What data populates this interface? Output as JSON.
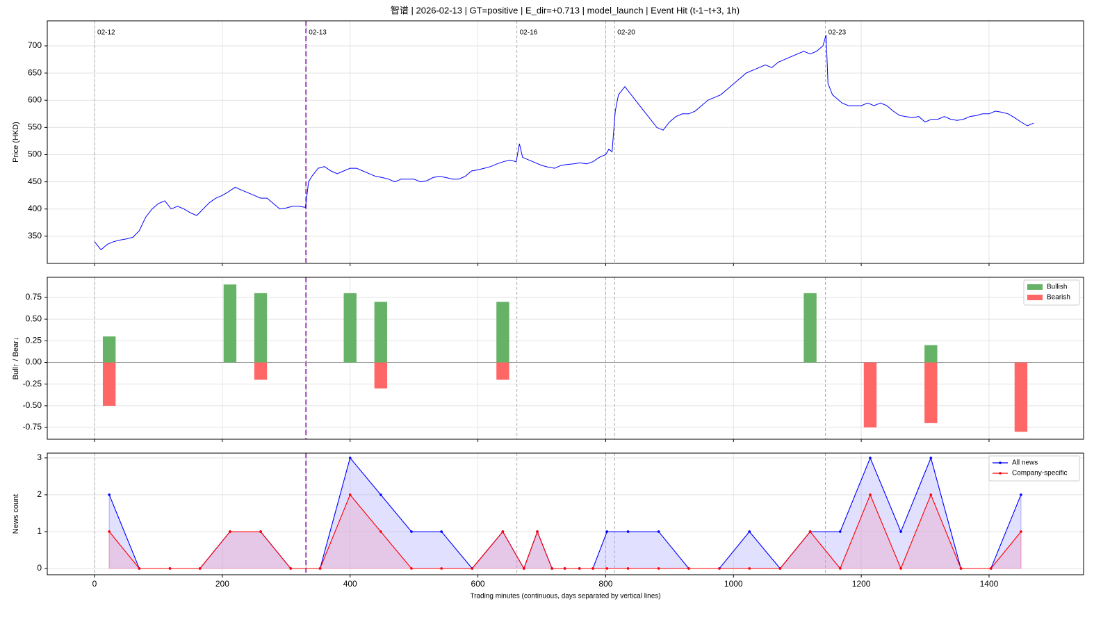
{
  "chart_data": [
    {
      "type": "line",
      "title": "智谱 | 2026-02-13 | GT=positive | E_dir=+0.713 | model_launch | Event Hit (t-1~t+3, 1h)",
      "y_label": "Price (HKD)",
      "color": "#0000ff",
      "grid": true,
      "xlim": [
        -74,
        1548
      ],
      "xticks": [
        0,
        200,
        400,
        600,
        800,
        1000,
        1200,
        1400
      ],
      "ylim": [
        300,
        746
      ],
      "yticks": [
        350,
        400,
        450,
        500,
        550,
        600,
        650,
        700
      ],
      "day_lines": {
        "x": [
          0,
          331,
          661,
          800,
          814,
          1144
        ],
        "labels": [
          "02-12",
          "02-13",
          "02-16",
          null,
          "02-20",
          "02-23"
        ],
        "color": "#aaaaaa"
      },
      "event_line": {
        "x": 331,
        "color": "#b565c8"
      },
      "x": [
        0,
        10,
        20,
        30,
        40,
        50,
        60,
        70,
        80,
        90,
        100,
        110,
        120,
        130,
        140,
        150,
        160,
        170,
        180,
        190,
        200,
        210,
        220,
        230,
        240,
        250,
        260,
        270,
        280,
        290,
        300,
        310,
        320,
        330,
        335,
        340,
        350,
        360,
        370,
        380,
        390,
        400,
        410,
        420,
        430,
        440,
        450,
        460,
        470,
        480,
        490,
        500,
        510,
        520,
        530,
        540,
        550,
        560,
        570,
        580,
        590,
        600,
        610,
        620,
        630,
        640,
        650,
        660,
        665,
        670,
        680,
        690,
        700,
        710,
        720,
        730,
        740,
        750,
        760,
        770,
        780,
        790,
        800,
        805,
        810,
        815,
        820,
        830,
        840,
        850,
        860,
        870,
        880,
        890,
        900,
        910,
        920,
        930,
        940,
        950,
        960,
        970,
        980,
        990,
        1000,
        1010,
        1020,
        1030,
        1040,
        1050,
        1060,
        1070,
        1080,
        1090,
        1100,
        1110,
        1120,
        1130,
        1140,
        1145,
        1148,
        1150,
        1155,
        1160,
        1170,
        1180,
        1190,
        1200,
        1210,
        1220,
        1230,
        1240,
        1250,
        1260,
        1270,
        1280,
        1290,
        1300,
        1310,
        1320,
        1330,
        1340,
        1350,
        1360,
        1370,
        1380,
        1390,
        1400,
        1410,
        1420,
        1430,
        1440,
        1450,
        1460,
        1470
      ],
      "values": [
        340,
        325,
        335,
        340,
        343,
        345,
        348,
        360,
        385,
        400,
        410,
        415,
        400,
        405,
        400,
        393,
        388,
        400,
        412,
        420,
        425,
        432,
        440,
        435,
        430,
        425,
        420,
        420,
        410,
        400,
        402,
        405,
        405,
        403,
        450,
        460,
        475,
        478,
        470,
        465,
        470,
        475,
        475,
        470,
        465,
        460,
        458,
        455,
        450,
        455,
        455,
        455,
        450,
        452,
        458,
        460,
        458,
        455,
        455,
        460,
        470,
        472,
        475,
        478,
        483,
        487,
        490,
        487,
        520,
        495,
        490,
        485,
        480,
        477,
        475,
        480,
        482,
        483,
        485,
        483,
        487,
        495,
        500,
        510,
        505,
        580,
        610,
        625,
        610,
        595,
        580,
        565,
        550,
        545,
        560,
        570,
        575,
        575,
        580,
        590,
        600,
        605,
        610,
        620,
        630,
        640,
        650,
        655,
        660,
        665,
        660,
        670,
        675,
        680,
        685,
        690,
        685,
        690,
        700,
        720,
        630,
        625,
        610,
        605,
        595,
        590,
        590,
        590,
        595,
        590,
        595,
        590,
        580,
        572,
        570,
        568,
        570,
        560,
        565,
        565,
        570,
        565,
        563,
        565,
        570,
        572,
        575,
        575,
        580,
        578,
        575,
        568,
        560,
        553,
        558
      ]
    },
    {
      "type": "bar",
      "y_label": "Bull↑ / Bear↓",
      "grid": true,
      "legend": "upper right",
      "xlim": [
        -74,
        1548
      ],
      "xticks": [
        0,
        200,
        400,
        600,
        800,
        1000,
        1200,
        1400
      ],
      "ylim": [
        -0.886,
        0.983
      ],
      "yticks": [
        {
          "value": -0.75,
          "label": "-0.75"
        },
        {
          "value": -0.5,
          "label": "-0.50"
        },
        {
          "value": -0.25,
          "label": "-0.25"
        },
        {
          "value": 0,
          "label": "0.00"
        },
        0.25,
        {
          "value": 0.5,
          "label": "0.50"
        },
        0.75
      ],
      "series": [
        {
          "name": "Bullish",
          "color": "#66b266",
          "x": [
            23,
            212,
            260,
            400,
            448,
            639,
            1120,
            1309
          ],
          "values": [
            0.3,
            0.9,
            0.8,
            0.8,
            0.7,
            0.7,
            0.8,
            0.2
          ]
        },
        {
          "name": "Bearish",
          "color": "#ff6666",
          "x": [
            23,
            260,
            448,
            639,
            1214,
            1309,
            1450
          ],
          "values": [
            -0.5,
            -0.2,
            -0.3,
            -0.2,
            -0.75,
            -0.7,
            -0.8
          ]
        }
      ]
    },
    {
      "type": "area_line",
      "y_label": "News count",
      "x_label": "Trading minutes (continuous, days separated by vertical lines)",
      "grid": true,
      "legend": "upper right",
      "xlim": [
        -74,
        1548
      ],
      "xticks": [
        0,
        200,
        400,
        600,
        800,
        1000,
        1200,
        1400
      ],
      "ylim": [
        -0.17,
        3.13
      ],
      "yticks": [
        0,
        1,
        2,
        3
      ],
      "x": [
        23,
        70,
        118,
        165,
        212,
        260,
        307,
        353,
        400,
        448,
        496,
        543,
        591,
        639,
        672,
        693,
        716,
        736,
        759,
        780,
        802,
        835,
        883,
        930,
        978,
        1025,
        1073,
        1120,
        1167,
        1214,
        1262,
        1309,
        1356,
        1403,
        1450
      ],
      "series": [
        {
          "name": "All news",
          "color": "#0000ff",
          "fill": "#aaaaff",
          "values": [
            2,
            0,
            0,
            0,
            1,
            1,
            0,
            0,
            3,
            2,
            1,
            1,
            0,
            1,
            0,
            1,
            0,
            0,
            0,
            0,
            1,
            1,
            1,
            0,
            0,
            1,
            0,
            1,
            1,
            3,
            1,
            3,
            0,
            0,
            2
          ]
        },
        {
          "name": "Company-specific",
          "color": "#ff0000",
          "fill": "#ee99bb",
          "values": [
            1,
            0,
            0,
            0,
            1,
            1,
            0,
            0,
            2,
            1,
            0,
            0,
            0,
            1,
            0,
            1,
            0,
            0,
            0,
            0,
            0,
            0,
            0,
            0,
            0,
            0,
            0,
            1,
            0,
            2,
            0,
            2,
            0,
            0,
            1
          ]
        }
      ]
    }
  ]
}
